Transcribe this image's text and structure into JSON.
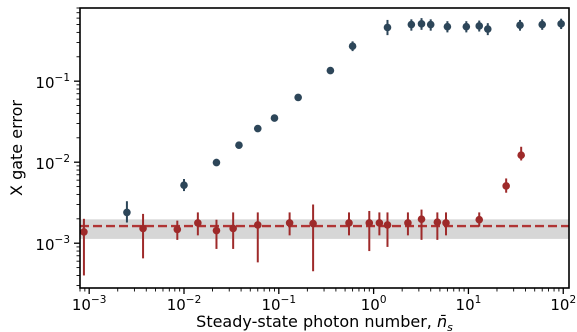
{
  "chart_data": {
    "type": "scatter",
    "xscale": "log",
    "yscale": "log",
    "xlim": [
      0.0008,
      115
    ],
    "ylim": [
      0.00028,
      0.8
    ],
    "xlabel": "Steady-state photon number, ",
    "xlabel_symbol": "n̄",
    "xlabel_subscript": "s",
    "ylabel": "X gate error",
    "grid": false,
    "legend": "none",
    "x_ticks": [
      {
        "value": 0.001,
        "base": "10",
        "exp": "−3"
      },
      {
        "value": 0.01,
        "base": "10",
        "exp": "−2"
      },
      {
        "value": 0.1,
        "base": "10",
        "exp": "−1"
      },
      {
        "value": 1,
        "base": "10",
        "exp": "0"
      },
      {
        "value": 10,
        "base": "10",
        "exp": "1"
      },
      {
        "value": 100,
        "base": "10",
        "exp": "2"
      }
    ],
    "y_ticks": [
      {
        "value": 0.001,
        "base": "10",
        "exp": "−3"
      },
      {
        "value": 0.01,
        "base": "10",
        "exp": "−2"
      },
      {
        "value": 0.1,
        "base": "10",
        "exp": "−1"
      }
    ],
    "reference_band": {
      "center": 0.00163,
      "low": 0.00113,
      "high": 0.00197,
      "line_color": "#b03535",
      "band_color": "#d6d6d6"
    },
    "series": [
      {
        "color": "#2d4659",
        "points": [
          {
            "x": 0.0025,
            "y": 0.0024,
            "lo": 0.0018,
            "hi": 0.0033
          },
          {
            "x": 0.01,
            "y": 0.0052,
            "lo": 0.0044,
            "hi": 0.0062
          },
          {
            "x": 0.022,
            "y": 0.0099,
            "lo": 0.0091,
            "hi": 0.011
          },
          {
            "x": 0.038,
            "y": 0.0162,
            "lo": 0.0155,
            "hi": 0.017
          },
          {
            "x": 0.06,
            "y": 0.026,
            "lo": 0.025,
            "hi": 0.027
          },
          {
            "x": 0.09,
            "y": 0.035,
            "lo": 0.034,
            "hi": 0.036
          },
          {
            "x": 0.16,
            "y": 0.063,
            "lo": 0.061,
            "hi": 0.065
          },
          {
            "x": 0.35,
            "y": 0.135,
            "lo": 0.127,
            "hi": 0.145
          },
          {
            "x": 0.6,
            "y": 0.27,
            "lo": 0.235,
            "hi": 0.31
          },
          {
            "x": 1.4,
            "y": 0.46,
            "lo": 0.37,
            "hi": 0.57
          },
          {
            "x": 2.5,
            "y": 0.5,
            "lo": 0.42,
            "hi": 0.58
          },
          {
            "x": 3.2,
            "y": 0.51,
            "lo": 0.43,
            "hi": 0.6
          },
          {
            "x": 4.0,
            "y": 0.5,
            "lo": 0.42,
            "hi": 0.58
          },
          {
            "x": 6.0,
            "y": 0.47,
            "lo": 0.4,
            "hi": 0.55
          },
          {
            "x": 9.5,
            "y": 0.47,
            "lo": 0.4,
            "hi": 0.55
          },
          {
            "x": 13.0,
            "y": 0.48,
            "lo": 0.41,
            "hi": 0.56
          },
          {
            "x": 16.0,
            "y": 0.44,
            "lo": 0.37,
            "hi": 0.52
          },
          {
            "x": 35.0,
            "y": 0.49,
            "lo": 0.42,
            "hi": 0.57
          },
          {
            "x": 60.0,
            "y": 0.5,
            "lo": 0.43,
            "hi": 0.58
          },
          {
            "x": 95.0,
            "y": 0.51,
            "lo": 0.44,
            "hi": 0.59
          }
        ]
      },
      {
        "color": "#9e2a2a",
        "points": [
          {
            "x": 0.00088,
            "y": 0.00138,
            "lo": 0.0004,
            "hi": 0.002
          },
          {
            "x": 0.0037,
            "y": 0.00152,
            "lo": 0.00065,
            "hi": 0.0023
          },
          {
            "x": 0.0085,
            "y": 0.00148,
            "lo": 0.0011,
            "hi": 0.0019
          },
          {
            "x": 0.014,
            "y": 0.00178,
            "lo": 0.00125,
            "hi": 0.0024
          },
          {
            "x": 0.022,
            "y": 0.00143,
            "lo": 0.00085,
            "hi": 0.00195
          },
          {
            "x": 0.033,
            "y": 0.00152,
            "lo": 0.00085,
            "hi": 0.0024
          },
          {
            "x": 0.06,
            "y": 0.00168,
            "lo": 0.00058,
            "hi": 0.0024
          },
          {
            "x": 0.13,
            "y": 0.00178,
            "lo": 0.00125,
            "hi": 0.0024
          },
          {
            "x": 0.23,
            "y": 0.00175,
            "lo": 0.00045,
            "hi": 0.003
          },
          {
            "x": 0.55,
            "y": 0.00178,
            "lo": 0.00125,
            "hi": 0.0024
          },
          {
            "x": 0.9,
            "y": 0.00178,
            "lo": 0.0008,
            "hi": 0.0025
          },
          {
            "x": 1.15,
            "y": 0.00178,
            "lo": 0.00125,
            "hi": 0.0024
          },
          {
            "x": 1.4,
            "y": 0.00168,
            "lo": 0.0009,
            "hi": 0.0024
          },
          {
            "x": 2.3,
            "y": 0.00178,
            "lo": 0.00125,
            "hi": 0.0024
          },
          {
            "x": 3.2,
            "y": 0.00198,
            "lo": 0.0011,
            "hi": 0.0026
          },
          {
            "x": 4.7,
            "y": 0.00182,
            "lo": 0.0011,
            "hi": 0.0024
          },
          {
            "x": 5.8,
            "y": 0.00178,
            "lo": 0.00125,
            "hi": 0.0024
          },
          {
            "x": 13.0,
            "y": 0.00195,
            "lo": 0.0016,
            "hi": 0.0024
          },
          {
            "x": 25.0,
            "y": 0.0051,
            "lo": 0.0042,
            "hi": 0.0063
          },
          {
            "x": 36.0,
            "y": 0.0122,
            "lo": 0.0105,
            "hi": 0.0155
          }
        ]
      }
    ]
  }
}
